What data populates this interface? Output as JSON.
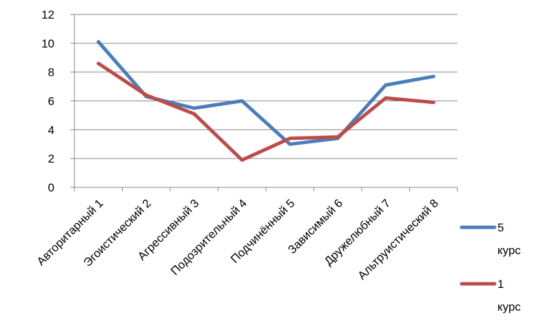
{
  "chart_data": {
    "type": "line",
    "title": "",
    "xlabel": "",
    "ylabel": "",
    "categories": [
      "Авторитарный 1",
      "Эгоистический 2",
      "Агрессивный 3",
      "Подозрительный 4",
      "Подчинённый 5",
      "Зависимый 6",
      "Дружелюбный 7",
      "Альтруистический 8"
    ],
    "ylim": [
      0,
      12
    ],
    "yticks": [
      "0",
      "2",
      "4",
      "6",
      "8",
      "10",
      "12"
    ],
    "grid": true,
    "legend_position": "right",
    "series": [
      {
        "name_line1": "5",
        "name_line2": "курс",
        "color": "#4a7ebb",
        "values": [
          10.1,
          6.3,
          5.5,
          6.0,
          3.0,
          3.4,
          7.1,
          7.7
        ]
      },
      {
        "name_line1": "1",
        "name_line2": "курс",
        "color": "#be4b48",
        "values": [
          8.6,
          6.4,
          5.1,
          1.9,
          3.4,
          3.5,
          6.2,
          5.9
        ]
      }
    ]
  }
}
